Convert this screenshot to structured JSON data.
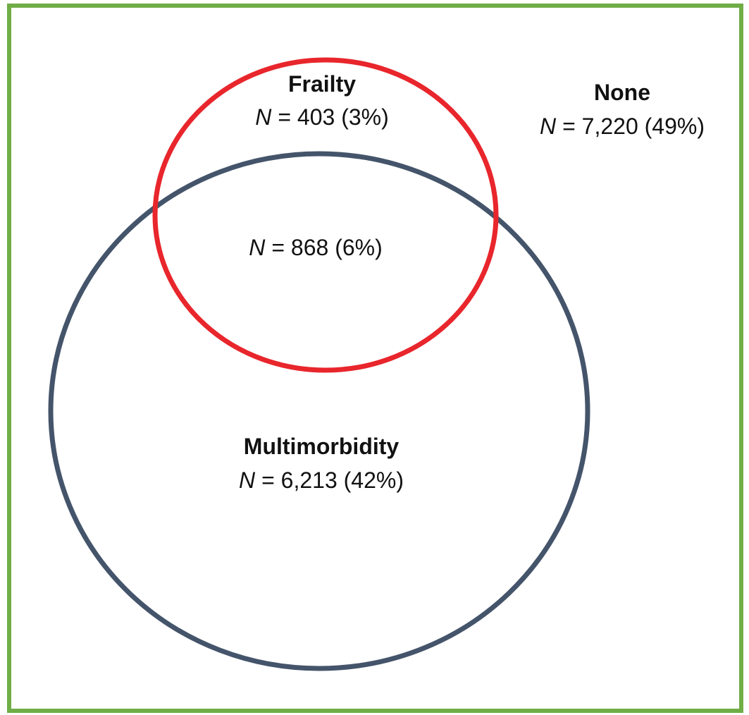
{
  "variable": "N",
  "regions": [
    {
      "name": "Frailty",
      "count": "= 403 (3%)"
    },
    {
      "count": "= 868 (6%)"
    },
    {
      "name": "Multimorbidity",
      "count": "= 6,213 (42%)"
    },
    {
      "name": "None",
      "count": "= 7,220 (49%)"
    }
  ]
}
